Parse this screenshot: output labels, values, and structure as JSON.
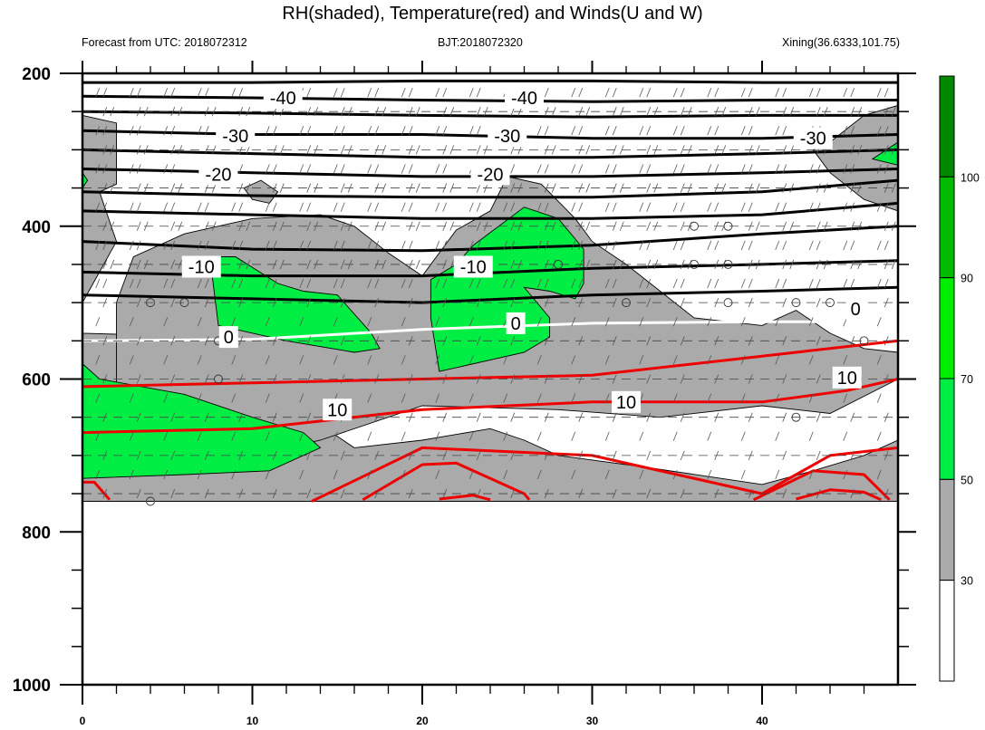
{
  "header": {
    "title": "RH(shaded), Temperature(red) and Winds(U and W)",
    "forecast": "Forecast from UTC: 2018072312",
    "bjt": "BJT:2018072320",
    "station": "Xining(36.6333,101.75)"
  },
  "colors": {
    "rh_30_50": "#aaaaaa",
    "rh_50_70": "#00ee44",
    "rh_70_90": "#00ee00",
    "rh_90_100": "#00bb00",
    "rh_above_100": "#008800",
    "temp_warm": "#ee0000",
    "temp_zero": "#ffffff",
    "temp_cold": "#000000"
  },
  "chart_data": {
    "type": "contour",
    "title": "RH(shaded), Temperature(red) and Winds(U and W)",
    "x_axis": {
      "range": [
        0,
        48
      ],
      "ticks": [
        0,
        10,
        20,
        30,
        40
      ],
      "tick_labels": [
        "0",
        "10",
        "20",
        "30",
        "40"
      ]
    },
    "y_axis": {
      "range": [
        1000,
        200
      ],
      "ticks": [
        200,
        400,
        600,
        800,
        1000
      ],
      "tick_labels": [
        "200",
        "400",
        "600",
        "800",
        "1000"
      ]
    },
    "colorbar": {
      "labels": [
        "30",
        "50",
        "70",
        "90",
        "100"
      ],
      "levels": [
        30,
        50,
        70,
        90,
        100
      ]
    },
    "temperature_contour_labels": [
      "-40",
      "-40",
      "-30",
      "-30",
      "-30",
      "-20",
      "-20",
      "-10",
      "-10",
      "0",
      "0",
      "0",
      "10",
      "10",
      "10"
    ],
    "rh_regions": [
      {
        "level": "30-50",
        "points": [
          [
            0,
            255
          ],
          [
            2,
            265
          ],
          [
            2,
            345
          ],
          [
            1,
            355
          ],
          [
            2,
            420
          ],
          [
            0,
            500
          ],
          [
            0,
            540
          ],
          [
            12,
            548
          ],
          [
            14,
            660
          ],
          [
            16,
            690
          ],
          [
            20,
            680
          ],
          [
            24,
            665
          ],
          [
            26,
            680
          ],
          [
            28,
            700
          ],
          [
            33,
            715
          ],
          [
            40,
            738
          ],
          [
            43,
            720
          ],
          [
            46,
            700
          ],
          [
            48,
            680
          ],
          [
            48,
            760
          ],
          [
            0,
            760
          ]
        ]
      },
      {
        "level": "30-50",
        "points": [
          [
            2,
            500
          ],
          [
            3,
            440
          ],
          [
            6,
            410
          ],
          [
            10,
            390
          ],
          [
            14,
            385
          ],
          [
            16,
            400
          ],
          [
            18,
            435
          ],
          [
            20,
            465
          ],
          [
            22,
            405
          ],
          [
            24,
            380
          ],
          [
            25,
            335
          ],
          [
            27,
            345
          ],
          [
            29,
            390
          ],
          [
            30,
            420
          ],
          [
            32,
            450
          ],
          [
            36,
            520
          ],
          [
            40,
            530
          ],
          [
            42,
            510
          ],
          [
            44,
            540
          ],
          [
            46,
            560
          ],
          [
            48,
            565
          ],
          [
            48,
            600
          ],
          [
            44,
            645
          ],
          [
            40,
            635
          ],
          [
            34,
            650
          ],
          [
            28,
            640
          ],
          [
            20,
            635
          ],
          [
            14,
            680
          ],
          [
            10,
            700
          ],
          [
            6,
            700
          ],
          [
            2,
            690
          ]
        ]
      },
      {
        "level": "30-50",
        "points": [
          [
            43,
            300
          ],
          [
            44,
            290
          ],
          [
            46,
            255
          ],
          [
            48,
            242
          ],
          [
            48,
            380
          ],
          [
            46,
            365
          ],
          [
            44,
            330
          ]
        ]
      },
      {
        "level": "30-50",
        "points": [
          [
            9.5,
            350
          ],
          [
            10.5,
            340
          ],
          [
            11.5,
            355
          ],
          [
            11,
            370
          ],
          [
            10,
            365
          ]
        ]
      },
      {
        "level": "50-70",
        "points": [
          [
            7.5,
            440
          ],
          [
            9,
            440
          ],
          [
            11.5,
            475
          ],
          [
            13,
            485
          ],
          [
            15,
            490
          ],
          [
            17,
            540
          ],
          [
            17.5,
            560
          ],
          [
            16,
            565
          ],
          [
            12,
            550
          ],
          [
            8,
            530
          ]
        ]
      },
      {
        "level": "50-70",
        "points": [
          [
            20.5,
            470
          ],
          [
            22,
            450
          ],
          [
            23,
            425
          ],
          [
            26,
            375
          ],
          [
            28,
            390
          ],
          [
            29.5,
            430
          ],
          [
            29.5,
            475
          ],
          [
            29,
            495
          ],
          [
            27.5,
            485
          ],
          [
            26,
            480
          ],
          [
            27.5,
            520
          ],
          [
            27.5,
            545
          ],
          [
            26,
            565
          ],
          [
            21,
            590
          ],
          [
            20.5,
            520
          ]
        ]
      },
      {
        "level": "50-70",
        "points": [
          [
            0,
            580
          ],
          [
            1,
            600
          ],
          [
            6,
            620
          ],
          [
            10,
            650
          ],
          [
            13,
            670
          ],
          [
            14,
            690
          ],
          [
            11,
            720
          ],
          [
            6,
            725
          ],
          [
            0,
            730
          ]
        ]
      },
      {
        "level": "50-70",
        "points": [
          [
            46.5,
            312
          ],
          [
            48,
            290
          ],
          [
            48,
            320
          ]
        ]
      },
      {
        "level": "50-70",
        "points": [
          [
            0,
            330
          ],
          [
            0.3,
            340
          ],
          [
            0,
            350
          ]
        ]
      }
    ],
    "temperature_lines": [
      {
        "value": -40,
        "color": "black",
        "points": [
          [
            0,
            212
          ],
          [
            10,
            212
          ],
          [
            20,
            210
          ],
          [
            30,
            210
          ],
          [
            40,
            212
          ],
          [
            48,
            212
          ]
        ]
      },
      {
        "value": -40,
        "color": "black",
        "points": [
          [
            0,
            230
          ],
          [
            10,
            232
          ],
          [
            20,
            235
          ],
          [
            30,
            237
          ],
          [
            40,
            235
          ],
          [
            48,
            235
          ]
        ]
      },
      {
        "value": -40,
        "color": "black",
        "points": [
          [
            0,
            250
          ],
          [
            10,
            252
          ],
          [
            20,
            255
          ],
          [
            30,
            257
          ],
          [
            40,
            255
          ],
          [
            48,
            255
          ]
        ]
      },
      {
        "value": -30,
        "color": "black",
        "points": [
          [
            0,
            275
          ],
          [
            10,
            280
          ],
          [
            20,
            280
          ],
          [
            30,
            285
          ],
          [
            40,
            285
          ],
          [
            48,
            280
          ]
        ]
      },
      {
        "value": -30,
        "color": "black",
        "points": [
          [
            0,
            300
          ],
          [
            10,
            305
          ],
          [
            20,
            310
          ],
          [
            30,
            310
          ],
          [
            40,
            305
          ],
          [
            48,
            300
          ]
        ]
      },
      {
        "value": -20,
        "color": "black",
        "points": [
          [
            0,
            325
          ],
          [
            10,
            330
          ],
          [
            20,
            335
          ],
          [
            30,
            335
          ],
          [
            40,
            330
          ],
          [
            48,
            325
          ]
        ]
      },
      {
        "value": -20,
        "color": "black",
        "points": [
          [
            0,
            355
          ],
          [
            10,
            360
          ],
          [
            20,
            362
          ],
          [
            30,
            362
          ],
          [
            40,
            355
          ],
          [
            48,
            340
          ]
        ]
      },
      {
        "value": -20,
        "color": "black",
        "points": [
          [
            0,
            380
          ],
          [
            10,
            385
          ],
          [
            20,
            390
          ],
          [
            30,
            390
          ],
          [
            40,
            385
          ],
          [
            48,
            370
          ]
        ]
      },
      {
        "value": -10,
        "color": "black",
        "points": [
          [
            0,
            420
          ],
          [
            10,
            430
          ],
          [
            20,
            432
          ],
          [
            30,
            425
          ],
          [
            40,
            410
          ],
          [
            48,
            400
          ]
        ]
      },
      {
        "value": -10,
        "color": "black",
        "points": [
          [
            0,
            460
          ],
          [
            10,
            465
          ],
          [
            20,
            465
          ],
          [
            30,
            455
          ],
          [
            40,
            450
          ],
          [
            48,
            445
          ]
        ]
      },
      {
        "value": -10,
        "color": "black",
        "points": [
          [
            0,
            490
          ],
          [
            10,
            495
          ],
          [
            20,
            500
          ],
          [
            30,
            490
          ],
          [
            40,
            485
          ],
          [
            48,
            480
          ]
        ]
      },
      {
        "value": 0,
        "color": "white",
        "points": [
          [
            0,
            550
          ],
          [
            10,
            548
          ],
          [
            20,
            535
          ],
          [
            30,
            527
          ],
          [
            40,
            525
          ],
          [
            48,
            525
          ]
        ]
      },
      {
        "value": 10,
        "color": "red",
        "points": [
          [
            0,
            610
          ],
          [
            10,
            605
          ],
          [
            20,
            600
          ],
          [
            30,
            595
          ],
          [
            40,
            570
          ],
          [
            48,
            550
          ]
        ]
      },
      {
        "value": 10,
        "color": "red",
        "points": [
          [
            0,
            670
          ],
          [
            10,
            665
          ],
          [
            20,
            640
          ],
          [
            30,
            630
          ],
          [
            40,
            630
          ],
          [
            45,
            615
          ],
          [
            48,
            600
          ]
        ]
      },
      {
        "value": 10,
        "color": "red",
        "points": [
          [
            13.5,
            760
          ],
          [
            20,
            690
          ],
          [
            30,
            700
          ],
          [
            40,
            750
          ],
          [
            44,
            700
          ],
          [
            48,
            690
          ]
        ]
      },
      {
        "value": 20,
        "color": "red",
        "points": [
          [
            0,
            735
          ],
          [
            0.7,
            735
          ],
          [
            1.6,
            758
          ]
        ]
      },
      {
        "value": 20,
        "color": "red",
        "points": [
          [
            16.5,
            758
          ],
          [
            20,
            712
          ],
          [
            22,
            710
          ],
          [
            26,
            750
          ],
          [
            26.3,
            758
          ]
        ]
      },
      {
        "value": 20,
        "color": "red",
        "points": [
          [
            21,
            757
          ],
          [
            23,
            752
          ],
          [
            24,
            758
          ]
        ]
      },
      {
        "value": 20,
        "color": "red",
        "points": [
          [
            39.5,
            758
          ],
          [
            43,
            720
          ],
          [
            46,
            725
          ],
          [
            47.5,
            758
          ]
        ]
      },
      {
        "value": 20,
        "color": "red",
        "points": [
          [
            42,
            757
          ],
          [
            44,
            745
          ],
          [
            46,
            748
          ],
          [
            47,
            758
          ]
        ]
      }
    ],
    "calm_wind_points": [
      [
        4,
        760
      ],
      [
        4,
        500
      ],
      [
        6,
        500
      ],
      [
        8,
        550
      ],
      [
        8,
        600
      ],
      [
        28,
        450
      ],
      [
        32,
        500
      ],
      [
        36,
        400
      ],
      [
        36,
        450
      ],
      [
        38,
        400
      ],
      [
        38,
        450
      ],
      [
        38,
        500
      ],
      [
        42,
        500
      ],
      [
        44,
        500
      ],
      [
        46,
        550
      ],
      [
        42,
        650
      ]
    ],
    "wind_levels": [
      225,
      250,
      275,
      300,
      325,
      350,
      375,
      400,
      425,
      450,
      475,
      500,
      525,
      550,
      575,
      600,
      625,
      650,
      675,
      700,
      725,
      750
    ],
    "grid": false,
    "legend": "colorbar-right"
  }
}
